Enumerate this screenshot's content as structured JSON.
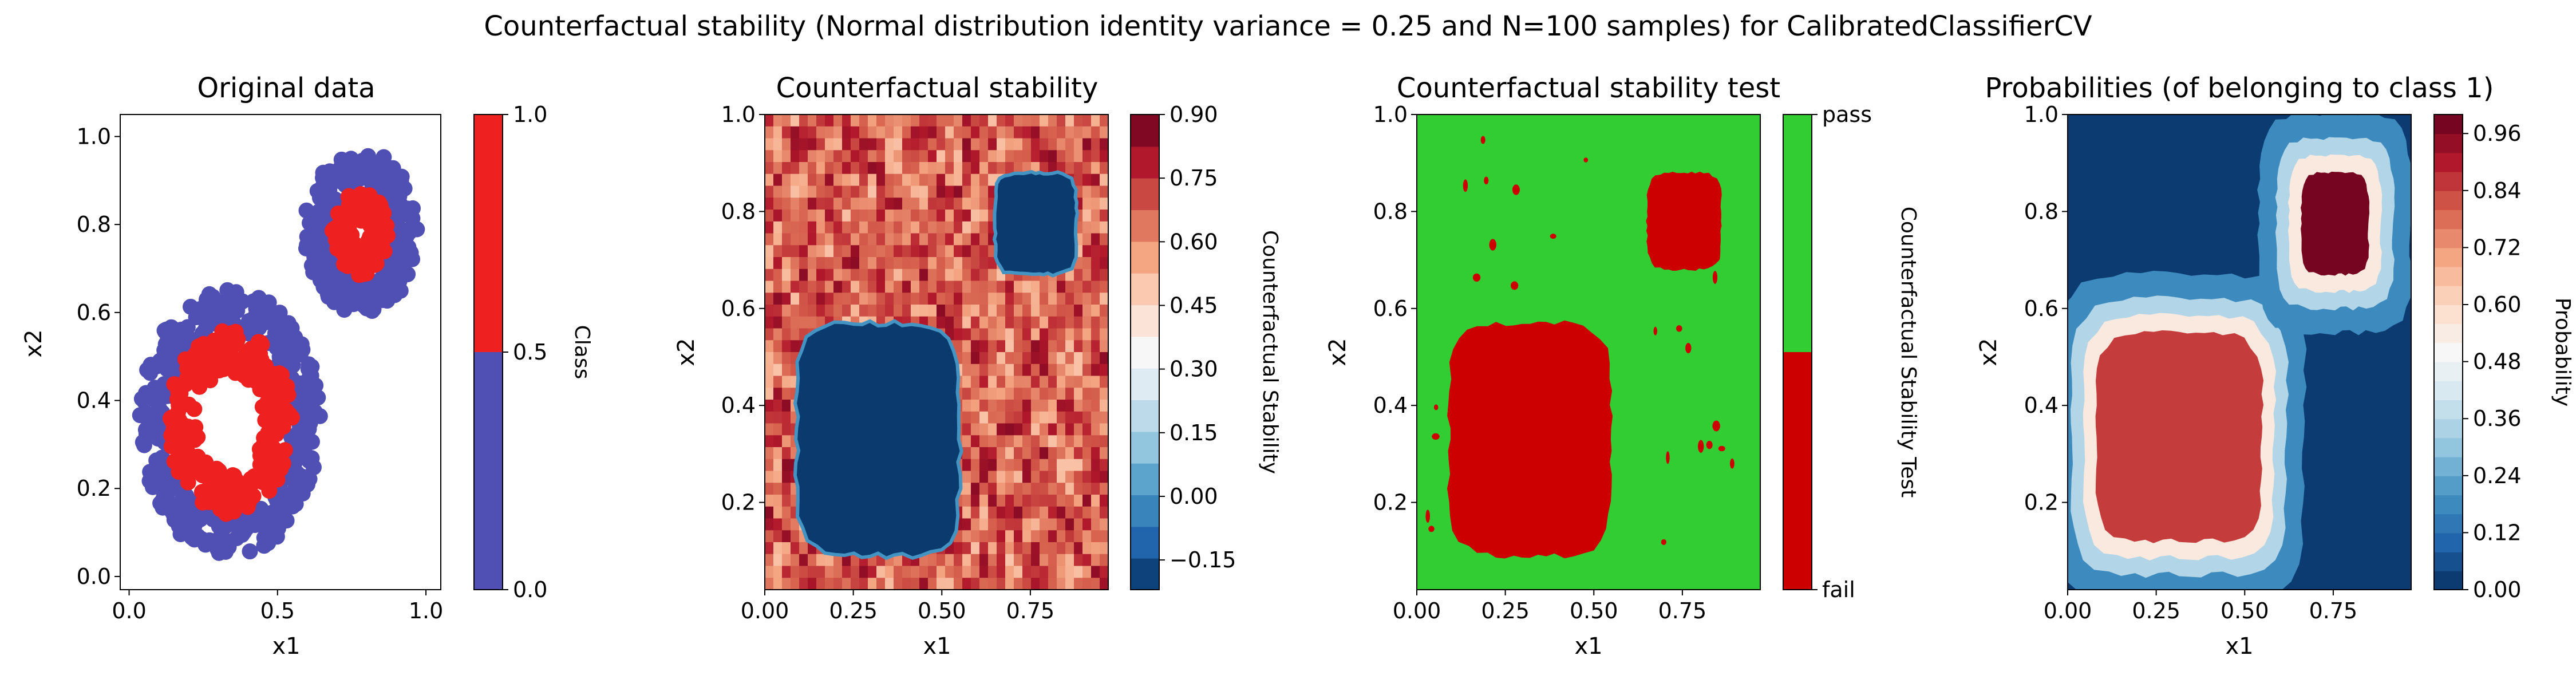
{
  "suptitle": "Counterfactual stability (Normal distribution identity variance = 0.25 and N=100 samples) for CalibratedClassifierCV",
  "colors": {
    "class0": "#5050b4",
    "class1": "#ee2020",
    "pass": "#32cd32",
    "fail": "#cc0000",
    "rdbu_low": "#053061",
    "rdbu_mid": "#f7f7f7",
    "rdbu_high": "#67001f"
  },
  "chart_data": [
    {
      "type": "scatter",
      "title": "Original data",
      "xlabel": "x1",
      "ylabel": "x2",
      "xlim": [
        -0.03,
        1.05
      ],
      "ylim": [
        -0.03,
        1.05
      ],
      "xticks": [
        "0.0",
        "0.5",
        "1.0"
      ],
      "yticks": [
        "0.0",
        "0.2",
        "0.4",
        "0.6",
        "0.8",
        "1.0"
      ],
      "colorbar": {
        "label": "Class",
        "ticks": [
          "0.0",
          "0.5",
          "1.0"
        ],
        "colors": [
          "#5050b4",
          "#ee2020"
        ]
      },
      "series": [
        {
          "class": 0,
          "shape": "ring",
          "center": [
            0.34,
            0.35
          ],
          "inner_radius": 0.22,
          "outer_radius": 0.32,
          "color": "#5050b4"
        },
        {
          "class": 1,
          "shape": "ring",
          "center": [
            0.34,
            0.35
          ],
          "inner_radius": 0.12,
          "outer_radius": 0.22,
          "color": "#ee2020"
        },
        {
          "class": 0,
          "shape": "ring",
          "center": [
            0.78,
            0.78
          ],
          "inner_radius": 0.1,
          "outer_radius": 0.2,
          "color": "#5050b4"
        },
        {
          "class": 1,
          "shape": "ring",
          "center": [
            0.78,
            0.78
          ],
          "inner_radius": 0.03,
          "outer_radius": 0.1,
          "color": "#ee2020"
        }
      ]
    },
    {
      "type": "heatmap",
      "title": "Counterfactual stability",
      "xlabel": "x1",
      "ylabel": "x2",
      "xlim": [
        0.0,
        0.97
      ],
      "ylim": [
        0.02,
        1.0
      ],
      "xticks": [
        "0.00",
        "0.25",
        "0.50",
        "0.75"
      ],
      "yticks": [
        "0.2",
        "0.4",
        "0.6",
        "0.8",
        "1.0"
      ],
      "colorbar": {
        "label": "Counterfactual Stability",
        "ticks": [
          "−0.15",
          "0.00",
          "0.15",
          "0.30",
          "0.45",
          "0.60",
          "0.75",
          "0.90"
        ],
        "range": [
          -0.22,
          0.9
        ]
      },
      "background_value_range": [
        0.5,
        0.85
      ],
      "regions": [
        {
          "shape": "blob",
          "x": [
            0.09,
            0.55
          ],
          "y": [
            0.09,
            0.57
          ],
          "value": -0.2
        },
        {
          "shape": "blob",
          "x": [
            0.65,
            0.88
          ],
          "y": [
            0.67,
            0.88
          ],
          "value": -0.2
        }
      ]
    },
    {
      "type": "heatmap",
      "title": "Counterfactual stability test",
      "xlabel": "x1",
      "ylabel": "x2",
      "xlim": [
        0.0,
        0.97
      ],
      "ylim": [
        0.02,
        1.0
      ],
      "xticks": [
        "0.00",
        "0.25",
        "0.50",
        "0.75"
      ],
      "yticks": [
        "0.2",
        "0.4",
        "0.6",
        "0.8",
        "1.0"
      ],
      "colorbar": {
        "label": "Counterfactual Stability Test",
        "ticks": [
          "pass",
          "fail"
        ],
        "colors": [
          "#cc0000",
          "#32cd32"
        ]
      },
      "background": "pass",
      "regions": [
        {
          "shape": "blob",
          "x": [
            0.09,
            0.55
          ],
          "y": [
            0.09,
            0.57
          ],
          "value": "fail"
        },
        {
          "shape": "blob",
          "x": [
            0.65,
            0.86
          ],
          "y": [
            0.68,
            0.88
          ],
          "value": "fail"
        }
      ]
    },
    {
      "type": "heatmap",
      "title": "Probabilities (of belonging to class 1)",
      "xlabel": "x1",
      "ylabel": "x2",
      "xlim": [
        0.0,
        0.97
      ],
      "ylim": [
        0.02,
        1.0
      ],
      "xticks": [
        "0.00",
        "0.25",
        "0.50",
        "0.75"
      ],
      "yticks": [
        "0.2",
        "0.4",
        "0.6",
        "0.8",
        "1.0"
      ],
      "colorbar": {
        "label": "Probability",
        "ticks": [
          "0.00",
          "0.12",
          "0.24",
          "0.36",
          "0.48",
          "0.60",
          "0.72",
          "0.84",
          "0.96"
        ],
        "range": [
          0.0,
          1.0
        ]
      },
      "background_value": 0.02,
      "regions": [
        {
          "shape": "blob",
          "x": [
            0.08,
            0.55
          ],
          "y": [
            0.12,
            0.55
          ],
          "value": 0.85
        },
        {
          "shape": "blob",
          "x": [
            0.66,
            0.85
          ],
          "y": [
            0.67,
            0.88
          ],
          "value": 0.98
        }
      ]
    }
  ]
}
